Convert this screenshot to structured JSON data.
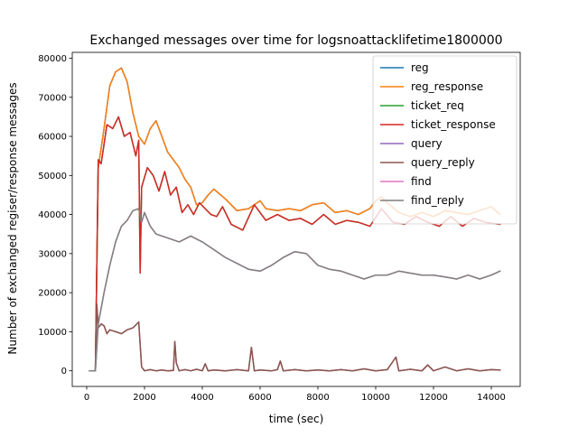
{
  "chart_data": {
    "type": "line",
    "title": "Exchanged messages over time for  logsnoattacklifetime1800000",
    "xlabel": "time (sec)",
    "ylabel": "Number of exchanged regiser/response messages",
    "xlim": [
      -500,
      15000
    ],
    "ylim": [
      -4000,
      81500
    ],
    "xticks": [
      0,
      2000,
      4000,
      6000,
      8000,
      10000,
      12000,
      14000
    ],
    "yticks": [
      0,
      10000,
      20000,
      30000,
      40000,
      50000,
      60000,
      70000,
      80000
    ],
    "grid": false,
    "legend_position": "top-right",
    "series": [
      {
        "name": "reg",
        "color": "#1f77b4",
        "x": [
          100,
          300,
          400,
          600,
          800,
          1000,
          1200,
          1400,
          1600,
          1800,
          2000,
          2200,
          2400,
          2600,
          2800,
          3000,
          3200,
          3400,
          3600,
          3800,
          4000,
          4200,
          4400,
          4800,
          5200,
          5600,
          5800,
          6000,
          6200,
          6600,
          7000,
          7400,
          7800,
          8200,
          8600,
          9000,
          9400,
          9800,
          10000,
          10200,
          10400,
          10800,
          11200,
          11600,
          12000,
          12400,
          12800,
          13200,
          13600,
          14000,
          14300
        ],
        "y": [
          0,
          0,
          52000,
          62000,
          73000,
          76500,
          77500,
          74000,
          66000,
          60000,
          58000,
          62000,
          64000,
          60000,
          56000,
          54000,
          52000,
          49000,
          47000,
          42500,
          43000,
          45000,
          46500,
          44000,
          41000,
          41500,
          42500,
          43500,
          41500,
          41000,
          41500,
          41000,
          42500,
          43000,
          40500,
          41000,
          40000,
          41500,
          43500,
          44500,
          43000,
          40500,
          39500,
          40500,
          39500,
          41000,
          40500,
          40000,
          41000,
          42000,
          40000
        ]
      },
      {
        "name": "reg_response",
        "color": "#ff7f0e",
        "x": [
          100,
          300,
          400,
          600,
          800,
          1000,
          1200,
          1400,
          1600,
          1800,
          2000,
          2200,
          2400,
          2600,
          2800,
          3000,
          3200,
          3400,
          3600,
          3800,
          4000,
          4200,
          4400,
          4800,
          5200,
          5600,
          5800,
          6000,
          6200,
          6600,
          7000,
          7400,
          7800,
          8200,
          8600,
          9000,
          9400,
          9800,
          10000,
          10200,
          10400,
          10800,
          11200,
          11600,
          12000,
          12400,
          12800,
          13200,
          13600,
          14000,
          14300
        ],
        "y": [
          0,
          0,
          52000,
          62000,
          73000,
          76500,
          77500,
          74000,
          66000,
          60000,
          58000,
          62000,
          64000,
          60000,
          56000,
          54000,
          52000,
          49000,
          47000,
          42500,
          43000,
          45000,
          46500,
          44000,
          41000,
          41500,
          42500,
          43500,
          41500,
          41000,
          41500,
          41000,
          42500,
          43000,
          40500,
          41000,
          40000,
          41500,
          43500,
          44500,
          43000,
          40500,
          39500,
          40500,
          39500,
          41000,
          40500,
          40000,
          41000,
          42000,
          40000
        ]
      },
      {
        "name": "ticket_req",
        "color": "#2ca02c",
        "x": [
          100,
          300,
          400,
          500,
          700,
          900,
          1100,
          1300,
          1500,
          1700,
          1800,
          1850,
          1900,
          2100,
          2300,
          2500,
          2700,
          2900,
          3100,
          3300,
          3500,
          3700,
          3900,
          4100,
          4300,
          4500,
          4700,
          5000,
          5400,
          5800,
          6200,
          6600,
          7000,
          7400,
          7800,
          8200,
          8600,
          9000,
          9400,
          9800,
          10200,
          10600,
          11000,
          11400,
          11800,
          12200,
          12600,
          13000,
          13400,
          13800,
          14300
        ],
        "y": [
          0,
          0,
          54000,
          53000,
          63000,
          62000,
          65000,
          60000,
          61000,
          55000,
          59000,
          25000,
          47000,
          52000,
          50000,
          46000,
          51000,
          45000,
          47000,
          40500,
          42500,
          40000,
          43000,
          41500,
          40000,
          39500,
          42000,
          37500,
          36000,
          42500,
          38500,
          40000,
          38500,
          39000,
          37500,
          40000,
          37500,
          38500,
          38000,
          37000,
          41500,
          38000,
          37500,
          39500,
          38000,
          37000,
          39500,
          37000,
          39000,
          38000,
          37500
        ]
      },
      {
        "name": "ticket_response",
        "color": "#d62728",
        "x": [
          100,
          300,
          400,
          500,
          700,
          900,
          1100,
          1300,
          1500,
          1700,
          1800,
          1850,
          1900,
          2100,
          2300,
          2500,
          2700,
          2900,
          3100,
          3300,
          3500,
          3700,
          3900,
          4100,
          4300,
          4500,
          4700,
          5000,
          5400,
          5800,
          6200,
          6600,
          7000,
          7400,
          7800,
          8200,
          8600,
          9000,
          9400,
          9800,
          10200,
          10600,
          11000,
          11400,
          11800,
          12200,
          12600,
          13000,
          13400,
          13800,
          14300
        ],
        "y": [
          0,
          0,
          54000,
          53000,
          63000,
          62000,
          65000,
          60000,
          61000,
          55000,
          59000,
          25000,
          47000,
          52000,
          50000,
          46000,
          51000,
          45000,
          47000,
          40500,
          42500,
          40000,
          43000,
          41500,
          40000,
          39500,
          42000,
          37500,
          36000,
          42500,
          38500,
          40000,
          38500,
          39000,
          37500,
          40000,
          37500,
          38500,
          38000,
          37000,
          41500,
          38000,
          37500,
          39500,
          38000,
          37000,
          39500,
          37000,
          39000,
          38000,
          37500
        ]
      },
      {
        "name": "query",
        "color": "#9467bd",
        "x": [
          100,
          300,
          350,
          400,
          500,
          600,
          700,
          800,
          1000,
          1200,
          1400,
          1600,
          1800,
          1900,
          2000,
          2200,
          2400,
          2600,
          2800,
          3000,
          3050,
          3100,
          3200,
          3400,
          3600,
          3800,
          4000,
          4100,
          4200,
          4400,
          4800,
          5200,
          5600,
          5700,
          5800,
          6000,
          6400,
          6600,
          6700,
          6800,
          7200,
          7600,
          8000,
          8400,
          8800,
          9200,
          9600,
          10000,
          10400,
          10700,
          10800,
          11200,
          11600,
          11800,
          12000,
          12400,
          12800,
          13200,
          13600,
          14000,
          14300
        ],
        "y": [
          0,
          0,
          17000,
          11000,
          12000,
          11500,
          9500,
          10500,
          10000,
          9500,
          10500,
          11000,
          12500,
          1000,
          0,
          300,
          0,
          200,
          0,
          100,
          7500,
          2000,
          0,
          300,
          0,
          400,
          0,
          1800,
          0,
          200,
          0,
          300,
          0,
          6000,
          0,
          200,
          0,
          300,
          2500,
          0,
          300,
          0,
          200,
          0,
          300,
          0,
          500,
          0,
          300,
          3500,
          0,
          400,
          0,
          1500,
          0,
          1000,
          0,
          500,
          0,
          300,
          200
        ]
      },
      {
        "name": "query_reply",
        "color": "#8c564b",
        "x": [
          100,
          300,
          350,
          400,
          500,
          600,
          700,
          800,
          1000,
          1200,
          1400,
          1600,
          1800,
          1900,
          2000,
          2200,
          2400,
          2600,
          2800,
          3000,
          3050,
          3100,
          3200,
          3400,
          3600,
          3800,
          4000,
          4100,
          4200,
          4400,
          4800,
          5200,
          5600,
          5700,
          5800,
          6000,
          6400,
          6600,
          6700,
          6800,
          7200,
          7600,
          8000,
          8400,
          8800,
          9200,
          9600,
          10000,
          10400,
          10700,
          10800,
          11200,
          11600,
          11800,
          12000,
          12400,
          12800,
          13200,
          13600,
          14000,
          14300
        ],
        "y": [
          0,
          0,
          17000,
          11000,
          12000,
          11500,
          9500,
          10500,
          10000,
          9500,
          10500,
          11000,
          12500,
          1000,
          0,
          300,
          0,
          200,
          0,
          100,
          7500,
          2000,
          0,
          300,
          0,
          400,
          0,
          1800,
          0,
          200,
          0,
          300,
          0,
          6000,
          0,
          200,
          0,
          300,
          2500,
          0,
          300,
          0,
          200,
          0,
          300,
          0,
          500,
          0,
          300,
          3500,
          0,
          400,
          0,
          1500,
          0,
          1000,
          0,
          500,
          0,
          300,
          200
        ]
      },
      {
        "name": "find",
        "color": "#e377c2",
        "x": [
          100,
          300,
          400,
          600,
          800,
          1000,
          1200,
          1400,
          1600,
          1800,
          1900,
          2000,
          2200,
          2400,
          2800,
          3200,
          3600,
          4000,
          4400,
          4800,
          5200,
          5600,
          6000,
          6400,
          6800,
          7200,
          7600,
          8000,
          8400,
          8800,
          9200,
          9600,
          10000,
          10400,
          10800,
          11200,
          11600,
          12000,
          12400,
          12800,
          13200,
          13600,
          14000,
          14300
        ],
        "y": [
          0,
          0,
          12000,
          20000,
          27000,
          33000,
          37000,
          38500,
          41000,
          41500,
          38000,
          40500,
          37000,
          35000,
          34000,
          33000,
          34500,
          33000,
          31000,
          29000,
          27500,
          26000,
          25500,
          27000,
          29000,
          30500,
          30000,
          27000,
          26000,
          25500,
          24500,
          23500,
          24500,
          24500,
          25500,
          25000,
          24500,
          24500,
          24000,
          23500,
          24500,
          23500,
          24500,
          25500
        ]
      },
      {
        "name": "find_reply",
        "color": "#7f7f7f",
        "x": [
          100,
          300,
          400,
          600,
          800,
          1000,
          1200,
          1400,
          1600,
          1800,
          1900,
          2000,
          2200,
          2400,
          2800,
          3200,
          3600,
          4000,
          4400,
          4800,
          5200,
          5600,
          6000,
          6400,
          6800,
          7200,
          7600,
          8000,
          8400,
          8800,
          9200,
          9600,
          10000,
          10400,
          10800,
          11200,
          11600,
          12000,
          12400,
          12800,
          13200,
          13600,
          14000,
          14300
        ],
        "y": [
          0,
          0,
          12000,
          20000,
          27000,
          33000,
          37000,
          38500,
          41000,
          41500,
          38000,
          40500,
          37000,
          35000,
          34000,
          33000,
          34500,
          33000,
          31000,
          29000,
          27500,
          26000,
          25500,
          27000,
          29000,
          30500,
          30000,
          27000,
          26000,
          25500,
          24500,
          23500,
          24500,
          24500,
          25500,
          25000,
          24500,
          24500,
          24000,
          23500,
          24500,
          23500,
          24500,
          25500
        ]
      }
    ]
  }
}
